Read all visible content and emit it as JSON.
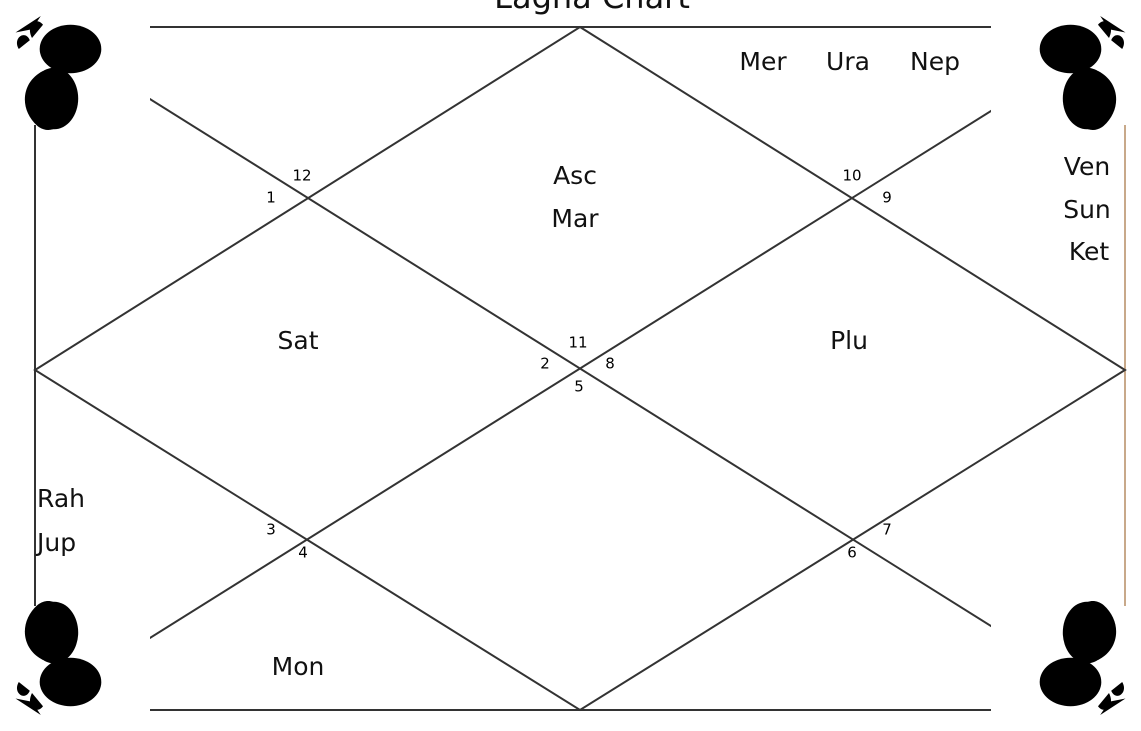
{
  "title": "Lagna Chart",
  "house_numbers": [
    "12",
    "1",
    "10",
    "9",
    "11",
    "2",
    "8",
    "5",
    "3",
    "4",
    "6",
    "7"
  ],
  "planet_groups": [
    [
      "Mer",
      "Ura",
      "Nep"
    ],
    [
      "Asc",
      "Mar"
    ],
    [
      "Ven",
      "Sun",
      "Ket"
    ],
    [
      "Sat"
    ],
    [
      "Plu"
    ],
    [
      "Rah",
      "Jup"
    ],
    [
      "Mon"
    ]
  ]
}
